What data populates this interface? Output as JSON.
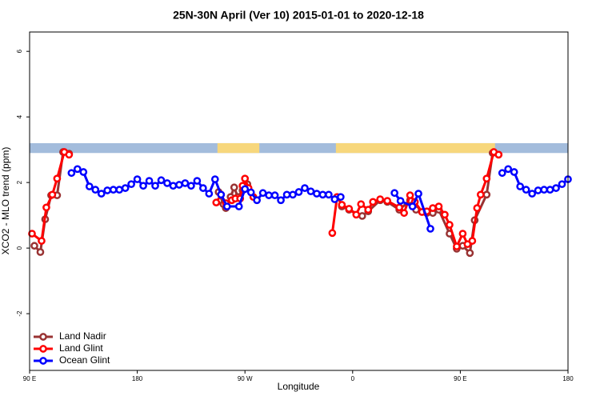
{
  "chart_data": {
    "type": "line",
    "title": "25N-30N April (Ver 10)   2015-01-01 to 2020-12-18",
    "x_label": "Longitude",
    "y_label": "XCO2 - MLO trend (ppm)",
    "xlim": [
      90,
      540
    ],
    "ylim": [
      -3.73,
      6.59
    ],
    "xticks": [
      {
        "value": 90,
        "label": "90 E"
      },
      180,
      {
        "value": 270,
        "label": "90 W"
      },
      {
        "value": 360,
        "label": "0"
      },
      {
        "value": 450,
        "label": "90 E"
      },
      {
        "value": 540,
        "label": "180"
      }
    ],
    "yticks": [
      -2,
      0,
      2,
      4,
      6
    ],
    "legend": "bottomleft",
    "land_band": {
      "ylim": [
        2.9,
        3.2
      ],
      "ocean_color": "#a3bcdc",
      "land_color": "#f7d77c",
      "land": [
        [
          247,
          282
        ],
        [
          346,
          479
        ]
      ]
    },
    "series": [
      {
        "name": "Land Nadir",
        "color": "#993333",
        "x": [
          94,
          99,
          103,
          108,
          113,
          118,
          123,
          185,
          248,
          252,
          254,
          258,
          261,
          264,
          268,
          272,
          310,
          351,
          357,
          368,
          373,
          383,
          389,
          399,
          408,
          413,
          422,
          427,
          432,
          441,
          447,
          452,
          458,
          462,
          472,
          477,
          482
        ],
        "values": [
          0.07,
          -0.12,
          0.88,
          1.61,
          1.61,
          2.93,
          2.88,
          null,
          1.71,
          1.34,
          1.22,
          1.56,
          1.85,
          1.56,
          1.76,
          1.95,
          null,
          1.27,
          1.17,
          0.98,
          1.12,
          1.46,
          1.41,
          1.17,
          1.46,
          1.17,
          1.07,
          1.07,
          1.17,
          0.44,
          -0.02,
          0.07,
          -0.15,
          0.85,
          1.63,
          2.9,
          2.85
        ]
      },
      {
        "name": "Land Glint",
        "color": "#ff0000",
        "x": [
          92,
          100,
          104,
          109,
          113,
          119,
          123,
          185,
          246,
          250,
          254,
          259,
          262,
          266,
          268,
          270,
          273,
          277,
          310,
          343,
          347,
          351,
          357,
          363,
          367,
          373,
          377,
          383,
          389,
          399,
          403,
          408,
          412,
          418,
          422,
          427,
          432,
          437,
          441,
          447,
          452,
          456,
          460,
          464,
          467,
          472,
          478,
          482
        ],
        "values": [
          0.44,
          0.22,
          1.24,
          1.63,
          2.12,
          2.93,
          2.85,
          null,
          1.39,
          1.63,
          1.37,
          1.46,
          1.51,
          1.51,
          1.9,
          2.12,
          1.83,
          1.56,
          null,
          0.46,
          1.56,
          1.32,
          1.2,
          1.02,
          1.34,
          1.17,
          1.41,
          1.49,
          1.44,
          1.24,
          1.07,
          1.61,
          1.41,
          1.1,
          1.12,
          1.22,
          1.27,
          1.02,
          0.71,
          0.05,
          0.44,
          0.12,
          0.22,
          1.22,
          1.63,
          2.12,
          2.93,
          2.85
        ]
      },
      {
        "name": "Ocean Glint",
        "color": "#0000ff",
        "x": [
          125,
          130,
          135,
          140,
          145,
          150,
          155,
          160,
          165,
          170,
          175,
          180,
          185,
          190,
          195,
          200,
          205,
          210,
          215,
          220,
          225,
          230,
          235,
          240,
          245,
          250,
          255,
          265,
          270,
          275,
          280,
          285,
          290,
          295,
          300,
          305,
          310,
          315,
          320,
          325,
          330,
          335,
          340,
          345,
          350,
          355,
          395,
          400,
          410,
          415,
          425,
          450,
          485,
          490,
          495,
          500,
          505,
          510,
          515,
          520,
          525,
          530,
          535,
          540
        ],
        "values": [
          2.29,
          2.41,
          2.32,
          1.88,
          1.78,
          1.66,
          1.76,
          1.78,
          1.78,
          1.83,
          1.95,
          2.1,
          1.9,
          2.05,
          1.9,
          2.07,
          1.98,
          1.9,
          1.93,
          1.98,
          1.9,
          2.05,
          1.83,
          1.66,
          2.1,
          1.63,
          1.27,
          1.27,
          1.8,
          1.7,
          1.46,
          1.68,
          1.61,
          1.61,
          1.46,
          1.63,
          1.63,
          1.71,
          1.83,
          1.73,
          1.66,
          1.63,
          1.63,
          1.49,
          1.56,
          null,
          1.68,
          1.44,
          1.27,
          1.66,
          0.59,
          null,
          2.29,
          2.41,
          2.32,
          1.88,
          1.78,
          1.66,
          1.76,
          1.78,
          1.78,
          1.83,
          1.95,
          2.1
        ]
      }
    ]
  }
}
